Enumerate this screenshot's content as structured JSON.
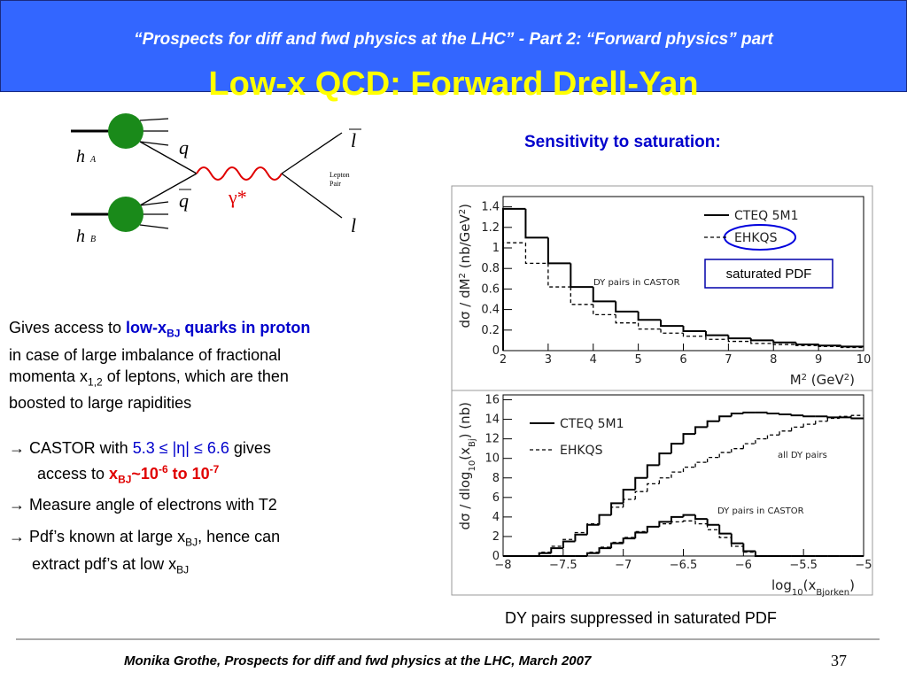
{
  "header": {
    "subtitle": "“Prospects for diff and fwd physics at the LHC” - Part 2: “Forward physics” part",
    "title": "Low-x QCD: Forward Drell-Yan"
  },
  "diagram": {
    "hA": [
      "h",
      "A"
    ],
    "hB": [
      "h",
      "B"
    ],
    "q": "q",
    "qbar": "q",
    "photon": "γ*",
    "lbar": "l",
    "l": "l",
    "pair": [
      "Lepton",
      "Pair"
    ]
  },
  "text": {
    "p1": [
      "Gives access to ",
      "low-x",
      "BJ",
      " quarks in proton",
      "in case of large imbalance of fractional",
      "momenta x",
      "1,2",
      " of leptons, which are then",
      "boosted to large rapidities"
    ],
    "b1": [
      "→ CASTOR with ",
      "5.3 ≤ |η| ≤ 6.6",
      " gives",
      "access to ",
      "x",
      "BJ",
      "~10",
      "-6",
      " to 10",
      "-7"
    ],
    "b2": "→ Measure angle of electrons with T2",
    "b3": [
      "→ Pdf’s known at large x",
      "BJ",
      ", hence can",
      "extract pdf’s at low x",
      "BJ"
    ]
  },
  "right": {
    "heading": "Sensitivity to saturation:",
    "box": "saturated PDF",
    "caption": "DY pairs suppressed in saturated PDF"
  },
  "footer": {
    "text": "Monika Grothe, Prospects for diff and fwd physics at the LHC, March 2007",
    "page": "37"
  },
  "chart_data": [
    {
      "type": "histogram",
      "xlabel": [
        "M",
        "2",
        " (GeV",
        "2",
        ")"
      ],
      "ylabel": [
        "dσ / dM",
        "2",
        " (nb/GeV",
        "2",
        ")"
      ],
      "xlim": [
        2,
        10
      ],
      "ylim": [
        0,
        1.5
      ],
      "xticks": [
        2,
        3,
        4,
        5,
        6,
        7,
        8,
        9,
        10
      ],
      "yticks": [
        0,
        0.2,
        0.4,
        0.6,
        0.8,
        1,
        1.2,
        1.4
      ],
      "bins": [
        2,
        2.5,
        3,
        3.5,
        4,
        4.5,
        5,
        5.5,
        6,
        6.5,
        7,
        7.5,
        8,
        8.5,
        9,
        9.5,
        10
      ],
      "annotations": [
        "DY pairs in CASTOR"
      ],
      "series": [
        {
          "name": "CTEQ 5M1",
          "style": "solid",
          "values": [
            1.38,
            1.1,
            0.85,
            0.62,
            0.48,
            0.38,
            0.3,
            0.24,
            0.19,
            0.15,
            0.12,
            0.1,
            0.08,
            0.06,
            0.05,
            0.04
          ]
        },
        {
          "name": "EHKQS",
          "style": "dashed",
          "values": [
            1.05,
            0.85,
            0.62,
            0.45,
            0.35,
            0.27,
            0.21,
            0.17,
            0.14,
            0.11,
            0.09,
            0.07,
            0.06,
            0.05,
            0.04,
            0.03
          ]
        }
      ]
    },
    {
      "type": "histogram",
      "xlabel": [
        "log",
        "10",
        "(x",
        "Bjorken",
        ")"
      ],
      "ylabel": [
        "dσ / dlog",
        "10",
        "(x",
        "Bj",
        ")  (nb)"
      ],
      "xlim": [
        -8,
        -5
      ],
      "ylim": [
        0,
        16.5
      ],
      "xticks": [
        {
          "value": -8,
          "label": "−8"
        },
        {
          "value": -7.5,
          "label": "−7.5"
        },
        {
          "value": -7,
          "label": "−7"
        },
        {
          "value": -6.5,
          "label": "−6.5"
        },
        {
          "value": -6,
          "label": "−6"
        },
        {
          "value": -5.5,
          "label": "−5.5"
        },
        {
          "value": -5,
          "label": "−5"
        }
      ],
      "yticks": [
        0,
        2,
        4,
        6,
        8,
        10,
        12,
        14,
        16
      ],
      "bins": [
        -8,
        -7.9,
        -7.8,
        -7.7,
        -7.6,
        -7.5,
        -7.4,
        -7.3,
        -7.2,
        -7.1,
        -7,
        -6.9,
        -6.8,
        -6.7,
        -6.6,
        -6.5,
        -6.4,
        -6.3,
        -6.2,
        -6.1,
        -6,
        -5.9,
        -5.8,
        -5.7,
        -5.6,
        -5.5,
        -5.4,
        -5.3,
        -5.2,
        -5.1,
        -5
      ],
      "annotations": [
        "all DY pairs",
        "DY pairs in CASTOR"
      ],
      "series": [
        {
          "name": "CTEQ 5M1",
          "style": "solid",
          "values": [
            0,
            0,
            0,
            0.3,
            0.8,
            1.5,
            2.2,
            3.2,
            4.2,
            5.4,
            6.8,
            8.0,
            9.3,
            10.5,
            11.5,
            12.5,
            13.2,
            13.8,
            14.3,
            14.6,
            14.7,
            14.7,
            14.6,
            14.5,
            14.4,
            14.3,
            14.3,
            14.2,
            14.2,
            14.1
          ]
        },
        {
          "name": "EHKQS",
          "style": "dashed",
          "values": [
            0,
            0,
            0,
            0.4,
            1.0,
            1.7,
            2.4,
            3.3,
            4.2,
            5.0,
            5.8,
            6.6,
            7.4,
            8.0,
            8.6,
            9.1,
            9.6,
            10.1,
            10.6,
            11.0,
            11.5,
            12.0,
            12.4,
            12.8,
            13.2,
            13.5,
            13.8,
            14.1,
            14.3,
            14.4
          ]
        },
        {
          "style": "solid",
          "values": [
            0,
            0,
            0,
            0,
            0,
            0,
            0,
            0.3,
            0.8,
            1.3,
            1.8,
            2.4,
            3.0,
            3.5,
            4.0,
            4.2,
            3.8,
            3.2,
            2.3,
            1.3,
            0.5,
            0,
            0,
            0,
            0,
            0,
            0,
            0,
            0,
            0
          ]
        },
        {
          "style": "dashed",
          "values": [
            0,
            0,
            0,
            0,
            0,
            0,
            0,
            0.4,
            0.9,
            1.4,
            1.9,
            2.5,
            3.0,
            3.3,
            3.5,
            3.6,
            3.3,
            2.7,
            1.9,
            1.0,
            0.4,
            0,
            0,
            0,
            0,
            0,
            0,
            0,
            0,
            0
          ]
        }
      ]
    }
  ]
}
